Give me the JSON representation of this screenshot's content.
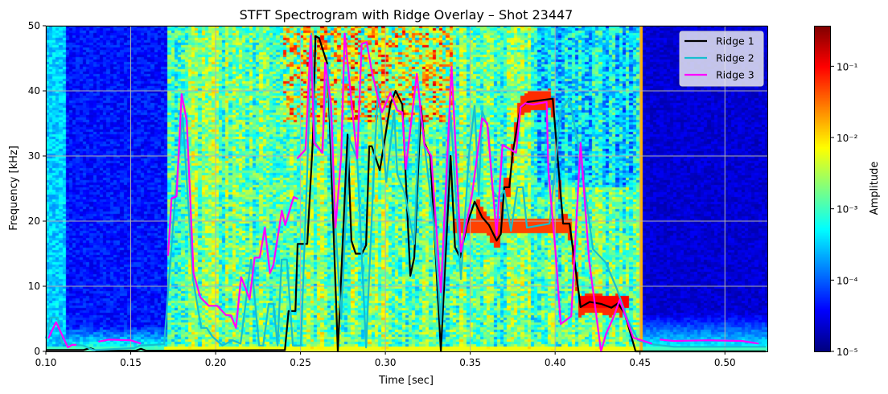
{
  "chart_data": {
    "type": "heatmap",
    "title": "STFT Spectrogram with Ridge Overlay – Shot 23447",
    "xlabel": "Time [sec]",
    "ylabel": "Frequency [kHz]",
    "xlim": [
      0.1,
      0.525
    ],
    "ylim": [
      0,
      50
    ],
    "x_ticks": [
      "0.10",
      "0.15",
      "0.20",
      "0.25",
      "0.30",
      "0.35",
      "0.40",
      "0.45",
      "0.50"
    ],
    "x_tick_values": [
      0.1,
      0.15,
      0.2,
      0.25,
      0.3,
      0.35,
      0.4,
      0.45,
      0.5
    ],
    "y_ticks": [
      "0",
      "10",
      "20",
      "30",
      "40",
      "50"
    ],
    "y_tick_values": [
      0,
      10,
      20,
      30,
      40,
      50
    ],
    "grid": true,
    "colormap": "jet",
    "colorbar": {
      "label": "Amplitude",
      "scale": "log",
      "range": [
        1e-05,
        0.37
      ],
      "tick_values": [
        1e-05,
        0.0001,
        0.001,
        0.01,
        0.1
      ],
      "tick_labels": [
        "10⁻⁵",
        "10⁻⁴",
        "10⁻³",
        "10⁻²",
        "10⁻¹"
      ]
    },
    "legend": {
      "placement": "top-right"
    },
    "series": [
      {
        "name": "Ridge 1",
        "color": "#000000",
        "points": [
          [
            0.1,
            0.2
          ],
          [
            0.122,
            0.2
          ],
          [
            0.126,
            0.5
          ],
          [
            0.13,
            0.1
          ],
          [
            0.153,
            0.1
          ],
          [
            0.156,
            0.4
          ],
          [
            0.159,
            0.1
          ],
          [
            0.2408,
            0.2
          ],
          [
            0.243,
            6.2
          ],
          [
            0.247,
            6.2
          ],
          [
            0.2483,
            16.5
          ],
          [
            0.254,
            16.5
          ],
          [
            0.2573,
            32.6
          ],
          [
            0.2588,
            48.4
          ],
          [
            0.261,
            48.1
          ],
          [
            0.2635,
            46
          ],
          [
            0.266,
            44
          ],
          [
            0.272,
            0
          ],
          [
            0.2777,
            33.3
          ],
          [
            0.28,
            17
          ],
          [
            0.2825,
            15
          ],
          [
            0.2862,
            15
          ],
          [
            0.2886,
            16.3
          ],
          [
            0.2905,
            31.5
          ],
          [
            0.292,
            31.5
          ],
          [
            0.2967,
            27.8
          ],
          [
            0.303,
            38
          ],
          [
            0.306,
            40
          ],
          [
            0.31,
            37.9
          ],
          [
            0.3147,
            11.6
          ],
          [
            0.317,
            14.4
          ],
          [
            0.321,
            37.5
          ],
          [
            0.323,
            32
          ],
          [
            0.3265,
            30
          ],
          [
            0.3327,
            0
          ],
          [
            0.3384,
            30
          ],
          [
            0.341,
            16
          ],
          [
            0.344,
            14.4
          ],
          [
            0.348,
            19.4
          ],
          [
            0.3526,
            23
          ],
          [
            0.357,
            20.6
          ],
          [
            0.361,
            19.4
          ],
          [
            0.3655,
            17
          ],
          [
            0.368,
            18
          ],
          [
            0.37,
            25.2
          ],
          [
            0.373,
            25.2
          ],
          [
            0.375,
            30.5
          ],
          [
            0.3796,
            37.5
          ],
          [
            0.384,
            38.3
          ],
          [
            0.3986,
            38.8
          ],
          [
            0.4047,
            19.6
          ],
          [
            0.4085,
            19.6
          ],
          [
            0.415,
            6.8
          ],
          [
            0.4204,
            7.6
          ],
          [
            0.427,
            7.3
          ],
          [
            0.4332,
            6.7
          ],
          [
            0.437,
            7.4
          ],
          [
            0.441,
            5.8
          ],
          [
            0.4474,
            0
          ],
          [
            0.524,
            0
          ]
        ]
      },
      {
        "name": "Ridge 2",
        "color": "#17becf",
        "points": [
          [
            0.1,
            2
          ],
          [
            0.103,
            5.2
          ],
          [
            0.107,
            5.2
          ],
          [
            0.1095,
            1.2
          ],
          [
            0.122,
            0.9
          ],
          [
            0.128,
            0.2
          ],
          [
            0.152,
            0.5
          ],
          [
            0.1555,
            0.9
          ],
          [
            0.1697,
            1.1
          ],
          [
            0.176,
            23
          ],
          [
            0.1806,
            36.3
          ],
          [
            0.1867,
            11.1
          ],
          [
            0.1915,
            3.6
          ],
          [
            0.1948,
            3.6
          ],
          [
            0.198,
            2.3
          ],
          [
            0.204,
            0.9
          ],
          [
            0.21,
            1.7
          ],
          [
            0.2147,
            1.2
          ],
          [
            0.2209,
            14.1
          ],
          [
            0.2256,
            0.9
          ],
          [
            0.228,
            0.9
          ],
          [
            0.2313,
            7.3
          ],
          [
            0.2341,
            7.3
          ],
          [
            0.2365,
            0.9
          ],
          [
            0.2389,
            14.1
          ],
          [
            0.242,
            14.1
          ],
          [
            0.2455,
            0.9
          ],
          [
            0.2502,
            0.9
          ],
          [
            0.254,
            27.7
          ],
          [
            0.2564,
            48.8
          ],
          [
            0.2588,
            32
          ],
          [
            0.2626,
            30.5
          ],
          [
            0.266,
            44
          ],
          [
            0.2706,
            19
          ],
          [
            0.274,
            5
          ],
          [
            0.2787,
            32.6
          ],
          [
            0.2834,
            29.6
          ],
          [
            0.2886,
            0.6
          ],
          [
            0.2934,
            28.9
          ],
          [
            0.2957,
            40.7
          ],
          [
            0.3005,
            26
          ],
          [
            0.3052,
            37
          ],
          [
            0.307,
            27.2
          ],
          [
            0.3114,
            24.3
          ],
          [
            0.317,
            16.5
          ],
          [
            0.3204,
            37.5
          ],
          [
            0.329,
            18.5
          ],
          [
            0.3327,
            4.2
          ],
          [
            0.3384,
            36.7
          ],
          [
            0.3445,
            11.1
          ],
          [
            0.3493,
            30.5
          ],
          [
            0.3526,
            37.7
          ],
          [
            0.355,
            24
          ],
          [
            0.357,
            36.9
          ],
          [
            0.3607,
            34.2
          ],
          [
            0.363,
            24.7
          ],
          [
            0.3668,
            23.5
          ],
          [
            0.37,
            24.7
          ],
          [
            0.374,
            18.5
          ],
          [
            0.3777,
            25.2
          ],
          [
            0.381,
            25.2
          ],
          [
            0.3834,
            19
          ],
          [
            0.3967,
            19.6
          ],
          [
            0.4033,
            37
          ],
          [
            0.4085,
            38.8
          ],
          [
            0.415,
            29.6
          ],
          [
            0.4223,
            15.7
          ],
          [
            0.4299,
            13.6
          ],
          [
            0.4365,
            9.5
          ],
          [
            0.4427,
            4.9
          ],
          [
            0.4488,
            1.7
          ],
          [
            0.4569,
            1.1
          ],
          [
            0.47,
            0.7
          ],
          [
            0.5242,
            0.7
          ]
        ]
      },
      {
        "name": "Ridge 3",
        "color": "#ff00ff",
        "points": [
          [
            0.1014,
            2
          ],
          [
            0.106,
            4.5
          ],
          [
            0.113,
            0.6
          ],
          [
            0.1155,
            1
          ],
          [
            0.118,
            1
          ],
          [
            null,
            null
          ],
          [
            0.131,
            1.5
          ],
          [
            0.137,
            1.8
          ],
          [
            0.15,
            1.7
          ],
          [
            0.156,
            1.2
          ],
          [
            null,
            null
          ],
          [
            0.172,
            14.7
          ],
          [
            0.174,
            23.5
          ],
          [
            0.177,
            23.8
          ],
          [
            0.18,
            39.5
          ],
          [
            0.183,
            35.4
          ],
          [
            0.187,
            12
          ],
          [
            0.191,
            8.3
          ],
          [
            0.196,
            7
          ],
          [
            0.201,
            7
          ],
          [
            0.206,
            5.6
          ],
          [
            0.209,
            5.5
          ],
          [
            0.212,
            3.6
          ],
          [
            0.215,
            11.4
          ],
          [
            0.218,
            9.5
          ],
          [
            0.22,
            8
          ],
          [
            0.223,
            14.4
          ],
          [
            0.226,
            14.4
          ],
          [
            0.229,
            19
          ],
          [
            0.232,
            12
          ],
          [
            0.234,
            13.2
          ],
          [
            0.239,
            21.6
          ],
          [
            0.241,
            19.4
          ],
          [
            0.246,
            23.7
          ],
          [
            0.2485,
            23.4
          ],
          [
            null,
            null
          ],
          [
            0.248,
            29.6
          ],
          [
            0.253,
            31
          ],
          [
            0.256,
            48.5
          ],
          [
            0.258,
            32
          ],
          [
            0.263,
            30.5
          ],
          [
            0.2645,
            44.3
          ],
          [
            0.268,
            38
          ],
          [
            0.2706,
            19
          ],
          [
            0.274,
            30
          ],
          [
            0.276,
            48.8
          ],
          [
            0.2834,
            29.6
          ],
          [
            0.286,
            47.2
          ],
          [
            0.289,
            47.5
          ],
          [
            0.292,
            43
          ],
          [
            0.296,
            38.5
          ],
          [
            0.298,
            36.7
          ],
          [
            0.303,
            39.7
          ],
          [
            0.307,
            37
          ],
          [
            0.31,
            36.7
          ],
          [
            0.312,
            28
          ],
          [
            0.3185,
            42.6
          ],
          [
            0.323,
            31.7
          ],
          [
            0.327,
            30
          ],
          [
            0.3327,
            9.1
          ],
          [
            0.339,
            43.7
          ],
          [
            0.3445,
            15.3
          ],
          [
            0.351,
            24
          ],
          [
            0.357,
            35.8
          ],
          [
            0.36,
            35
          ],
          [
            0.3655,
            17.8
          ],
          [
            0.369,
            31.7
          ],
          [
            0.377,
            30.5
          ],
          [
            0.3796,
            37.5
          ],
          [
            0.3825,
            38.1
          ],
          [
            0.387,
            37.9
          ],
          [
            0.395,
            38.3
          ],
          [
            0.396,
            27.8
          ],
          [
            0.4,
            16
          ],
          [
            0.4033,
            4.2
          ],
          [
            0.4095,
            5.4
          ],
          [
            0.415,
            32
          ],
          [
            0.42,
            14
          ],
          [
            0.427,
            0
          ],
          [
            0.43,
            2.7
          ],
          [
            0.434,
            5
          ],
          [
            0.438,
            7.9
          ],
          [
            0.446,
            2.1
          ],
          [
            0.457,
            1.2
          ],
          [
            null,
            null
          ],
          [
            0.4616,
            1.8
          ],
          [
            0.47,
            1.6
          ],
          [
            0.49,
            1.7
          ],
          [
            0.51,
            1.6
          ],
          [
            0.5199,
            1.2
          ]
        ]
      }
    ]
  }
}
